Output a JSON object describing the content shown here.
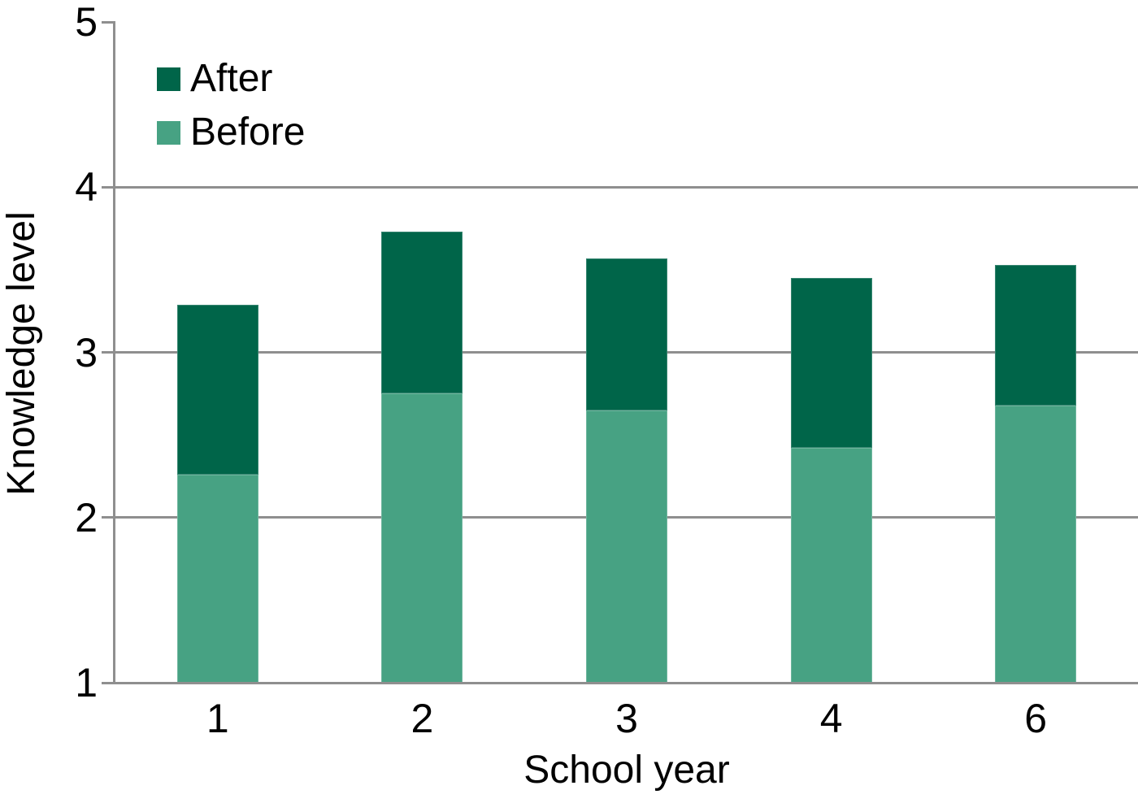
{
  "chart_data": {
    "type": "bar",
    "subtype": "overlay-stacked-look",
    "title": "",
    "xlabel": "School year",
    "ylabel": "Knowledge level",
    "categories": [
      "1",
      "2",
      "3",
      "4",
      "6"
    ],
    "series": [
      {
        "name": "After",
        "color": "#006549",
        "values": [
          3.29,
          3.73,
          3.57,
          3.45,
          3.53
        ]
      },
      {
        "name": "Before",
        "color": "#47A283",
        "values": [
          2.26,
          2.75,
          2.65,
          2.42,
          2.68
        ]
      }
    ],
    "ylim": [
      1,
      5
    ],
    "yticks": [
      1,
      2,
      3,
      4,
      5
    ],
    "gridline_values": [
      2,
      3,
      4
    ],
    "grid": true,
    "legend_position": "top-left",
    "colors": {
      "axis": "#8F8F8F",
      "text": "#000000",
      "background": "#FFFFFF"
    }
  }
}
